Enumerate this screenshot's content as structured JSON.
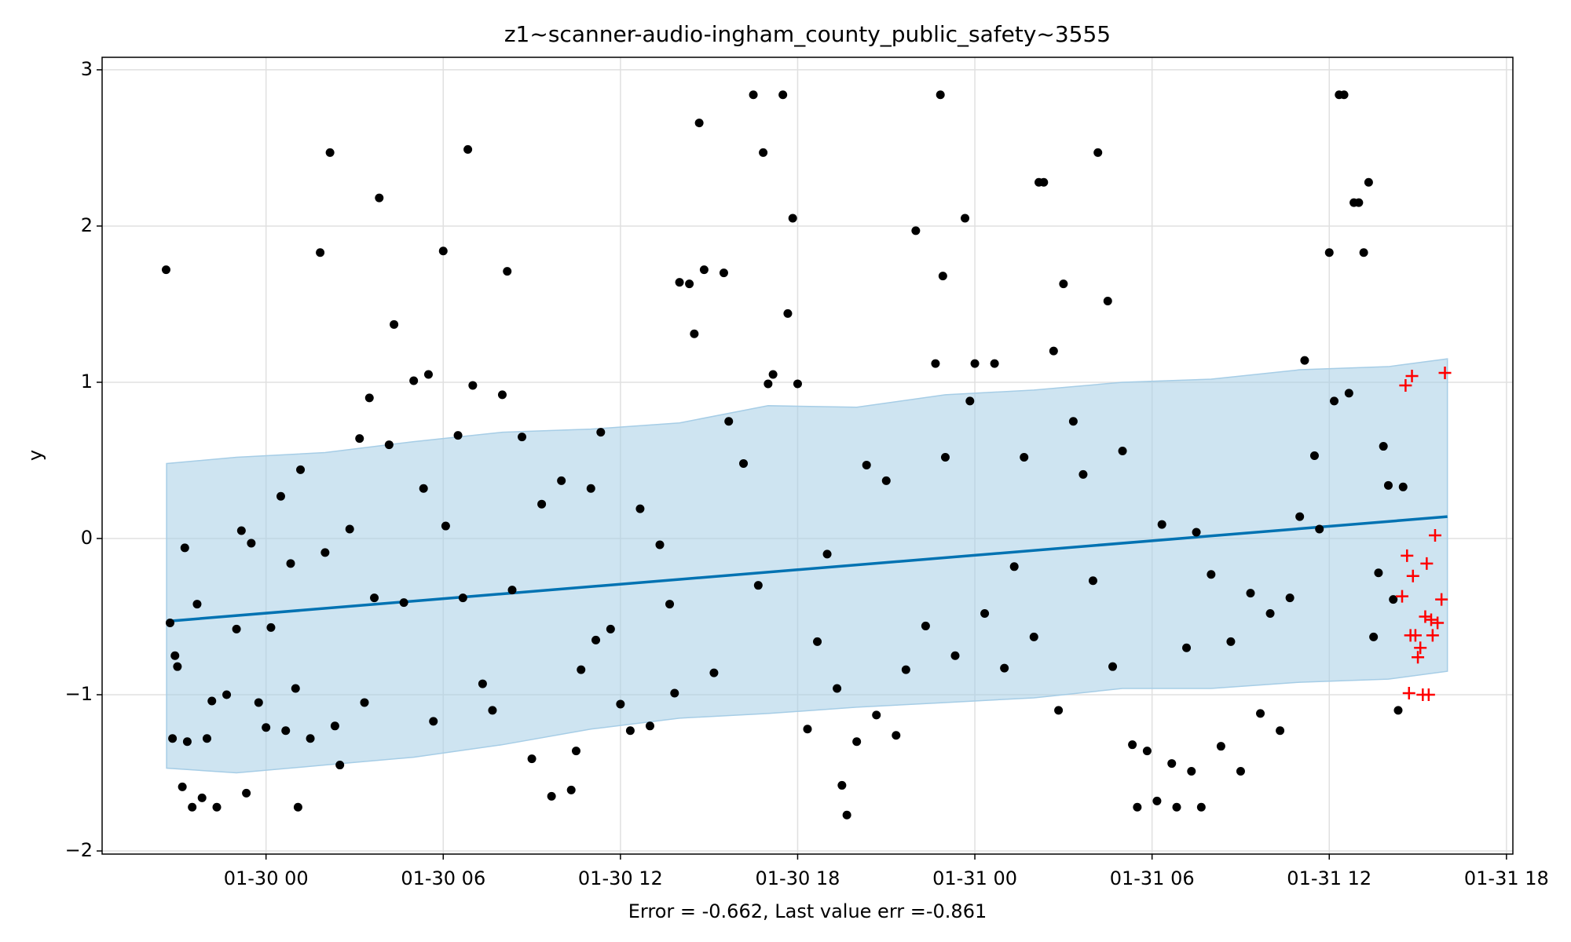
{
  "chart_data": {
    "type": "scatter",
    "title": "z1~scanner-audio-ingham_county_public_safety~3555",
    "xlabel": "Error = -0.662, Last value err =-0.861",
    "ylabel": "y",
    "xlim": [
      "01-29 18:27",
      "01-31 18:13"
    ],
    "xticks": [
      "01-30 00",
      "01-30 06",
      "01-30 12",
      "01-30 18",
      "01-31 00",
      "01-31 06",
      "01-31 12",
      "01-31 18"
    ],
    "ylim": [
      -2.02,
      3.08
    ],
    "yticks": [
      {
        "value": -2,
        "label": "−2"
      },
      {
        "value": -1,
        "label": "−1"
      },
      0,
      1,
      2,
      3
    ],
    "grid": true,
    "band": {
      "color": "#a6cde6",
      "x": [
        "01-29 20:38",
        "01-29 23:00",
        "01-30 02:00",
        "01-30 05:00",
        "01-30 08:00",
        "01-30 11:00",
        "01-30 14:00",
        "01-30 17:00",
        "01-30 20:00",
        "01-30 23:00",
        "01-31 02:00",
        "01-31 05:00",
        "01-31 08:00",
        "01-31 11:00",
        "01-31 14:00",
        "01-31 16:00"
      ],
      "upper": [
        0.48,
        0.52,
        0.55,
        0.62,
        0.68,
        0.7,
        0.74,
        0.85,
        0.84,
        0.92,
        0.95,
        1.0,
        1.02,
        1.08,
        1.1,
        1.15
      ],
      "lower": [
        -1.47,
        -1.5,
        -1.45,
        -1.4,
        -1.32,
        -1.22,
        -1.15,
        -1.12,
        -1.08,
        -1.05,
        -1.02,
        -0.96,
        -0.96,
        -0.92,
        -0.9,
        -0.85
      ]
    },
    "trend": {
      "color": "#0072b2",
      "x": [
        "01-29 20:38",
        "01-31 16:00"
      ],
      "y": [
        -0.53,
        0.14
      ]
    },
    "points": {
      "color": "#000000",
      "x": [
        "01-29 20:37",
        "01-29 20:45",
        "01-29 20:50",
        "01-29 20:55",
        "01-29 21:00",
        "01-29 21:10",
        "01-29 21:15",
        "01-29 21:20",
        "01-29 21:30",
        "01-29 21:40",
        "01-29 21:50",
        "01-29 22:00",
        "01-29 22:10",
        "01-29 22:20",
        "01-29 22:40",
        "01-29 23:00",
        "01-29 23:10",
        "01-29 23:20",
        "01-29 23:30",
        "01-29 23:45",
        "01-30 00:00",
        "01-30 00:10",
        "01-30 00:30",
        "01-30 00:40",
        "01-30 00:50",
        "01-30 01:00",
        "01-30 01:05",
        "01-30 01:10",
        "01-30 01:30",
        "01-30 01:50",
        "01-30 02:00",
        "01-30 02:10",
        "01-30 02:20",
        "01-30 02:30",
        "01-30 02:50",
        "01-30 03:10",
        "01-30 03:20",
        "01-30 03:30",
        "01-30 03:40",
        "01-30 03:50",
        "01-30 04:10",
        "01-30 04:20",
        "01-30 04:40",
        "01-30 05:00",
        "01-30 05:20",
        "01-30 05:30",
        "01-30 05:40",
        "01-30 06:00",
        "01-30 06:05",
        "01-30 06:30",
        "01-30 06:40",
        "01-30 06:50",
        "01-30 07:00",
        "01-30 07:20",
        "01-30 07:40",
        "01-30 08:00",
        "01-30 08:10",
        "01-30 08:20",
        "01-30 08:40",
        "01-30 09:00",
        "01-30 09:20",
        "01-30 09:40",
        "01-30 10:00",
        "01-30 10:20",
        "01-30 10:30",
        "01-30 10:40",
        "01-30 11:00",
        "01-30 11:10",
        "01-30 11:20",
        "01-30 11:40",
        "01-30 12:00",
        "01-30 12:20",
        "01-30 12:40",
        "01-30 13:00",
        "01-30 13:20",
        "01-30 13:40",
        "01-30 13:50",
        "01-30 14:00",
        "01-30 14:20",
        "01-30 14:30",
        "01-30 14:40",
        "01-30 14:50",
        "01-30 15:10",
        "01-30 15:30",
        "01-30 15:40",
        "01-30 16:10",
        "01-30 16:30",
        "01-30 16:40",
        "01-30 16:50",
        "01-30 17:00",
        "01-30 17:10",
        "01-30 17:30",
        "01-30 17:40",
        "01-30 17:50",
        "01-30 18:00",
        "01-30 18:20",
        "01-30 18:40",
        "01-30 19:00",
        "01-30 19:20",
        "01-30 19:30",
        "01-30 19:40",
        "01-30 20:00",
        "01-30 20:20",
        "01-30 20:40",
        "01-30 21:00",
        "01-30 21:20",
        "01-30 21:40",
        "01-30 22:00",
        "01-30 22:20",
        "01-30 22:40",
        "01-30 22:50",
        "01-30 22:55",
        "01-30 23:00",
        "01-30 23:20",
        "01-30 23:40",
        "01-30 23:50",
        "01-31 00:00",
        "01-31 00:20",
        "01-31 00:40",
        "01-31 01:00",
        "01-31 01:20",
        "01-31 01:40",
        "01-31 02:00",
        "01-31 02:10",
        "01-31 02:20",
        "01-31 02:40",
        "01-31 02:50",
        "01-31 03:00",
        "01-31 03:20",
        "01-31 03:40",
        "01-31 04:00",
        "01-31 04:10",
        "01-31 04:30",
        "01-31 04:40",
        "01-31 05:00",
        "01-31 05:20",
        "01-31 05:30",
        "01-31 05:50",
        "01-31 06:10",
        "01-31 06:20",
        "01-31 06:40",
        "01-31 06:50",
        "01-31 07:10",
        "01-31 07:20",
        "01-31 07:30",
        "01-31 07:40",
        "01-31 08:00",
        "01-31 08:20",
        "01-31 08:40",
        "01-31 09:00",
        "01-31 09:20",
        "01-31 09:40",
        "01-31 10:00",
        "01-31 10:20",
        "01-31 10:40",
        "01-31 11:00",
        "01-31 11:10",
        "01-31 11:30",
        "01-31 11:40",
        "01-31 12:00",
        "01-31 12:10",
        "01-31 12:20",
        "01-31 12:30",
        "01-31 12:40",
        "01-31 12:50",
        "01-31 13:00",
        "01-31 13:10",
        "01-31 13:20",
        "01-31 13:30",
        "01-31 13:40",
        "01-31 13:50",
        "01-31 14:00",
        "01-31 14:10",
        "01-31 14:20",
        "01-31 14:30"
      ],
      "y": [
        1.72,
        -0.54,
        -1.28,
        -0.75,
        -0.82,
        -1.59,
        -0.06,
        -1.3,
        -1.72,
        -0.42,
        -1.66,
        -1.28,
        -1.04,
        -1.72,
        -1.0,
        -0.58,
        0.05,
        -1.63,
        -0.03,
        -1.05,
        -1.21,
        -0.57,
        0.27,
        -1.23,
        -0.16,
        -0.96,
        -1.72,
        0.44,
        -1.28,
        1.83,
        -0.09,
        2.47,
        -1.2,
        -1.45,
        0.06,
        0.64,
        -1.05,
        0.9,
        -0.38,
        2.18,
        0.6,
        1.37,
        -0.41,
        1.01,
        0.32,
        1.05,
        -1.17,
        1.84,
        0.08,
        0.66,
        -0.38,
        2.49,
        0.98,
        -0.93,
        -1.1,
        0.92,
        1.71,
        -0.33,
        0.65,
        -1.41,
        0.22,
        -1.65,
        0.37,
        -1.61,
        -1.36,
        -0.84,
        0.32,
        -0.65,
        0.68,
        -0.58,
        -1.06,
        -1.23,
        0.19,
        -1.2,
        -0.04,
        -0.42,
        -0.99,
        1.64,
        1.63,
        1.31,
        2.66,
        1.72,
        -0.86,
        1.7,
        0.75,
        0.48,
        2.84,
        -0.3,
        2.47,
        0.99,
        1.05,
        2.84,
        1.44,
        2.05,
        0.99,
        -1.22,
        -0.66,
        -0.1,
        -0.96,
        -1.58,
        -1.77,
        -1.3,
        0.47,
        -1.13,
        0.37,
        -1.26,
        -0.84,
        1.97,
        -0.56,
        1.12,
        2.84,
        1.68,
        0.52,
        -0.75,
        2.05,
        0.88,
        1.12,
        -0.48,
        1.12,
        -0.83,
        -0.18,
        0.52,
        -0.63,
        2.28,
        2.28,
        1.2,
        -1.1,
        1.63,
        0.75,
        0.41,
        -0.27,
        2.47,
        1.52,
        -0.82,
        0.56,
        -1.32,
        -1.72,
        -1.36,
        -1.68,
        0.09,
        -1.44,
        -1.72,
        -0.7,
        -1.49,
        0.04,
        -1.72,
        -0.23,
        -1.33,
        -0.66,
        -1.49,
        -0.35,
        -1.12,
        -0.48,
        -1.23,
        -0.38,
        0.14,
        1.14,
        0.53,
        0.06,
        1.83,
        0.88,
        2.84,
        2.84,
        0.93,
        2.15,
        2.15,
        1.83,
        2.28,
        -0.63,
        -0.22,
        0.59,
        0.34,
        -0.39,
        -1.1,
        0.33
      ]
    },
    "forecast": {
      "color": "#ff0000",
      "x": [
        "01-31 14:28",
        "01-31 14:35",
        "01-31 14:38",
        "01-31 14:42",
        "01-31 14:45",
        "01-31 14:48",
        "01-31 14:50",
        "01-31 14:55",
        "01-31 15:00",
        "01-31 15:05",
        "01-31 15:10",
        "01-31 15:15",
        "01-31 15:18",
        "01-31 15:22",
        "01-31 15:27",
        "01-31 15:30",
        "01-31 15:35",
        "01-31 15:40",
        "01-31 15:48",
        "01-31 15:55"
      ],
      "y": [
        -0.37,
        0.98,
        -0.11,
        -0.99,
        -0.62,
        1.04,
        -0.24,
        -0.62,
        -0.76,
        -0.7,
        -1.0,
        -0.5,
        -0.16,
        -1.0,
        -0.52,
        -0.62,
        0.02,
        -0.54,
        -0.39,
        1.06
      ]
    }
  }
}
